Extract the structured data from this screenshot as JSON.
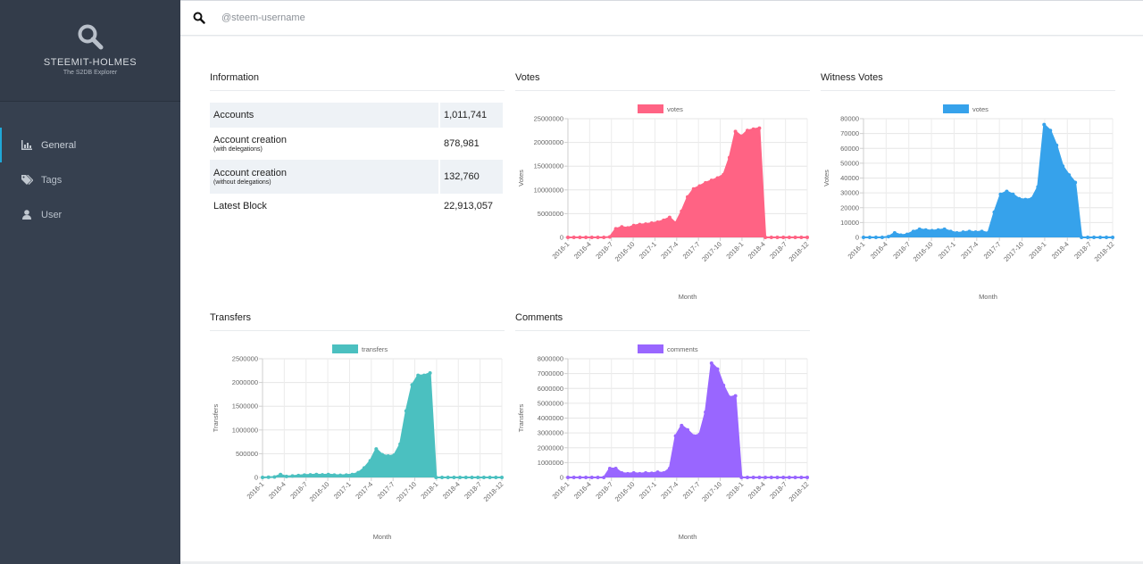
{
  "brand": {
    "name": "STEEMIT-HOLMES",
    "subtitle": "The S2DB Explorer"
  },
  "nav": [
    {
      "label": "General",
      "icon": "bar-chart-icon",
      "active": true
    },
    {
      "label": "Tags",
      "icon": "tags-icon",
      "active": false
    },
    {
      "label": "User",
      "icon": "user-icon",
      "active": false
    }
  ],
  "search": {
    "placeholder": "@steem-username",
    "value": ""
  },
  "information": {
    "title": "Information",
    "rows": [
      {
        "label": "Accounts",
        "sub": "",
        "value": "1,011,741"
      },
      {
        "label": "Account creation",
        "sub": "(with delegations)",
        "value": "878,981"
      },
      {
        "label": "Account creation",
        "sub": "(without delegations)",
        "value": "132,760"
      },
      {
        "label": "Latest Block",
        "sub": "",
        "value": "22,913,057"
      }
    ]
  },
  "colors": {
    "sidebar": "#36404f",
    "accent": "#20a8d8",
    "votes": "#ff6384",
    "witness": "#36a2eb",
    "transfers": "#4bc0c0",
    "comments": "#9966ff"
  },
  "chart_data": [
    {
      "id": "votes",
      "panel_title": "Votes",
      "type": "area",
      "color": "#ff6384",
      "series": [
        {
          "name": "votes"
        }
      ],
      "xlabel": "Month",
      "ylabel": "Votes",
      "ylim": [
        0,
        25000000
      ],
      "yticks": [
        "0",
        "5000000",
        "10000000",
        "15000000",
        "20000000",
        "25000000"
      ],
      "xticks": [
        "2016-1",
        "2016-4",
        "2016-7",
        "2016-10",
        "2017-1",
        "2017-4",
        "2017-7",
        "2017-10",
        "2018-1",
        "2018-4",
        "2018-7",
        "2018-12"
      ],
      "values": [
        0,
        0,
        0,
        0,
        0,
        0,
        0,
        100000,
        1800000,
        2200000,
        2000000,
        2500000,
        2700000,
        2800000,
        3000000,
        3200000,
        3600000,
        4200000,
        3000000,
        5500000,
        8500000,
        10200000,
        10800000,
        11500000,
        12000000,
        12500000,
        13200000,
        16800000,
        22300000,
        21300000,
        22500000,
        22800000,
        23000000,
        0,
        0,
        0,
        0,
        0,
        0,
        0,
        0
      ]
    },
    {
      "id": "witness",
      "panel_title": "Witness Votes",
      "type": "area",
      "color": "#36a2eb",
      "series": [
        {
          "name": "votes"
        }
      ],
      "xlabel": "Month",
      "ylabel": "Votes",
      "ylim": [
        0,
        80000
      ],
      "yticks": [
        "0",
        "10000",
        "20000",
        "30000",
        "40000",
        "50000",
        "60000",
        "70000",
        "80000"
      ],
      "xticks": [
        "2016-1",
        "2016-4",
        "2016-7",
        "2016-10",
        "2017-1",
        "2017-4",
        "2017-7",
        "2017-10",
        "2018-1",
        "2018-4",
        "2018-7",
        "2018-12"
      ],
      "values": [
        0,
        0,
        0,
        0,
        500,
        3000,
        1500,
        2000,
        4000,
        5500,
        5000,
        4500,
        5000,
        5500,
        4000,
        3000,
        3500,
        4000,
        3500,
        4000,
        3000,
        17000,
        29000,
        31000,
        29000,
        26000,
        25500,
        26000,
        34000,
        76000,
        72000,
        62000,
        48000,
        42000,
        37000,
        0,
        0,
        0,
        0,
        0,
        0
      ]
    },
    {
      "id": "transfers",
      "panel_title": "Transfers",
      "type": "area",
      "color": "#4bc0c0",
      "series": [
        {
          "name": "transfers"
        }
      ],
      "xlabel": "Month",
      "ylabel": "Transfers",
      "ylim": [
        0,
        2500000
      ],
      "yticks": [
        "0",
        "500000",
        "1000000",
        "1500000",
        "2000000",
        "2500000"
      ],
      "xticks": [
        "2016-1",
        "2016-4",
        "2016-7",
        "2016-10",
        "2017-1",
        "2017-4",
        "2017-7",
        "2017-10",
        "2018-1",
        "2018-4",
        "2018-7",
        "2018-12"
      ],
      "values": [
        0,
        5000,
        10000,
        60000,
        20000,
        30000,
        40000,
        50000,
        55000,
        60000,
        55000,
        60000,
        50000,
        45000,
        50000,
        60000,
        100000,
        200000,
        350000,
        600000,
        480000,
        450000,
        470000,
        700000,
        1400000,
        1950000,
        2150000,
        2150000,
        2200000,
        0,
        0,
        0,
        0,
        0,
        0,
        0,
        0,
        0,
        0,
        0,
        0
      ]
    },
    {
      "id": "comments",
      "panel_title": "Comments",
      "type": "area",
      "color": "#9966ff",
      "series": [
        {
          "name": "comments"
        }
      ],
      "xlabel": "Month",
      "ylabel": "Transfers",
      "ylim": [
        0,
        8000000
      ],
      "yticks": [
        "0",
        "1000000",
        "2000000",
        "3000000",
        "4000000",
        "5000000",
        "6000000",
        "7000000",
        "8000000"
      ],
      "xticks": [
        "2016-1",
        "2016-4",
        "2016-7",
        "2016-10",
        "2017-1",
        "2017-4",
        "2017-7",
        "2017-10",
        "2018-1",
        "2018-4",
        "2018-7",
        "2018-12"
      ],
      "values": [
        0,
        0,
        0,
        0,
        0,
        0,
        0,
        600000,
        600000,
        300000,
        250000,
        300000,
        250000,
        300000,
        280000,
        350000,
        300000,
        600000,
        2800000,
        3500000,
        3200000,
        2800000,
        2900000,
        4400000,
        7700000,
        7300000,
        6200000,
        5400000,
        5500000,
        0,
        0,
        0,
        0,
        0,
        0,
        0,
        0,
        0,
        0,
        0,
        0
      ]
    }
  ]
}
